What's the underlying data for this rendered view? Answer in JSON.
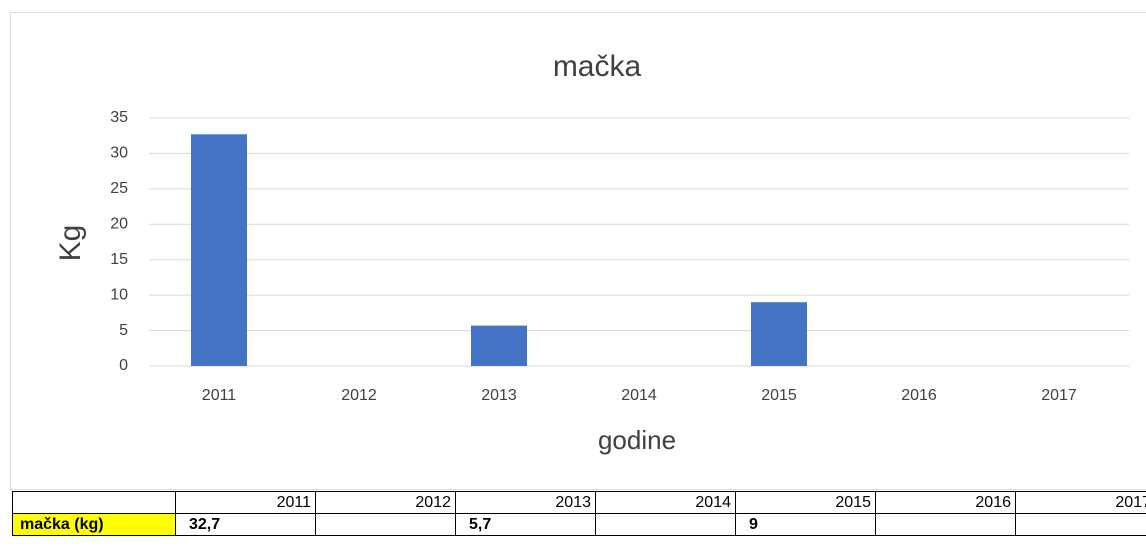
{
  "chart_data": {
    "type": "bar",
    "title": "mačka",
    "xlabel": "godine",
    "ylabel": "Kg",
    "categories": [
      "2011",
      "2012",
      "2013",
      "2014",
      "2015",
      "2016",
      "2017"
    ],
    "values": [
      32.7,
      null,
      5.7,
      null,
      9,
      null,
      null
    ],
    "color": "#4472c4",
    "ylim": [
      0,
      35
    ],
    "yticks": [
      0,
      5,
      10,
      15,
      20,
      25,
      30,
      35
    ],
    "grid": true
  },
  "table": {
    "rows": [
      {
        "label": "mačka (kg)",
        "cells": [
          "32,7",
          null,
          "5,7",
          null,
          "9",
          null,
          null
        ]
      }
    ]
  }
}
